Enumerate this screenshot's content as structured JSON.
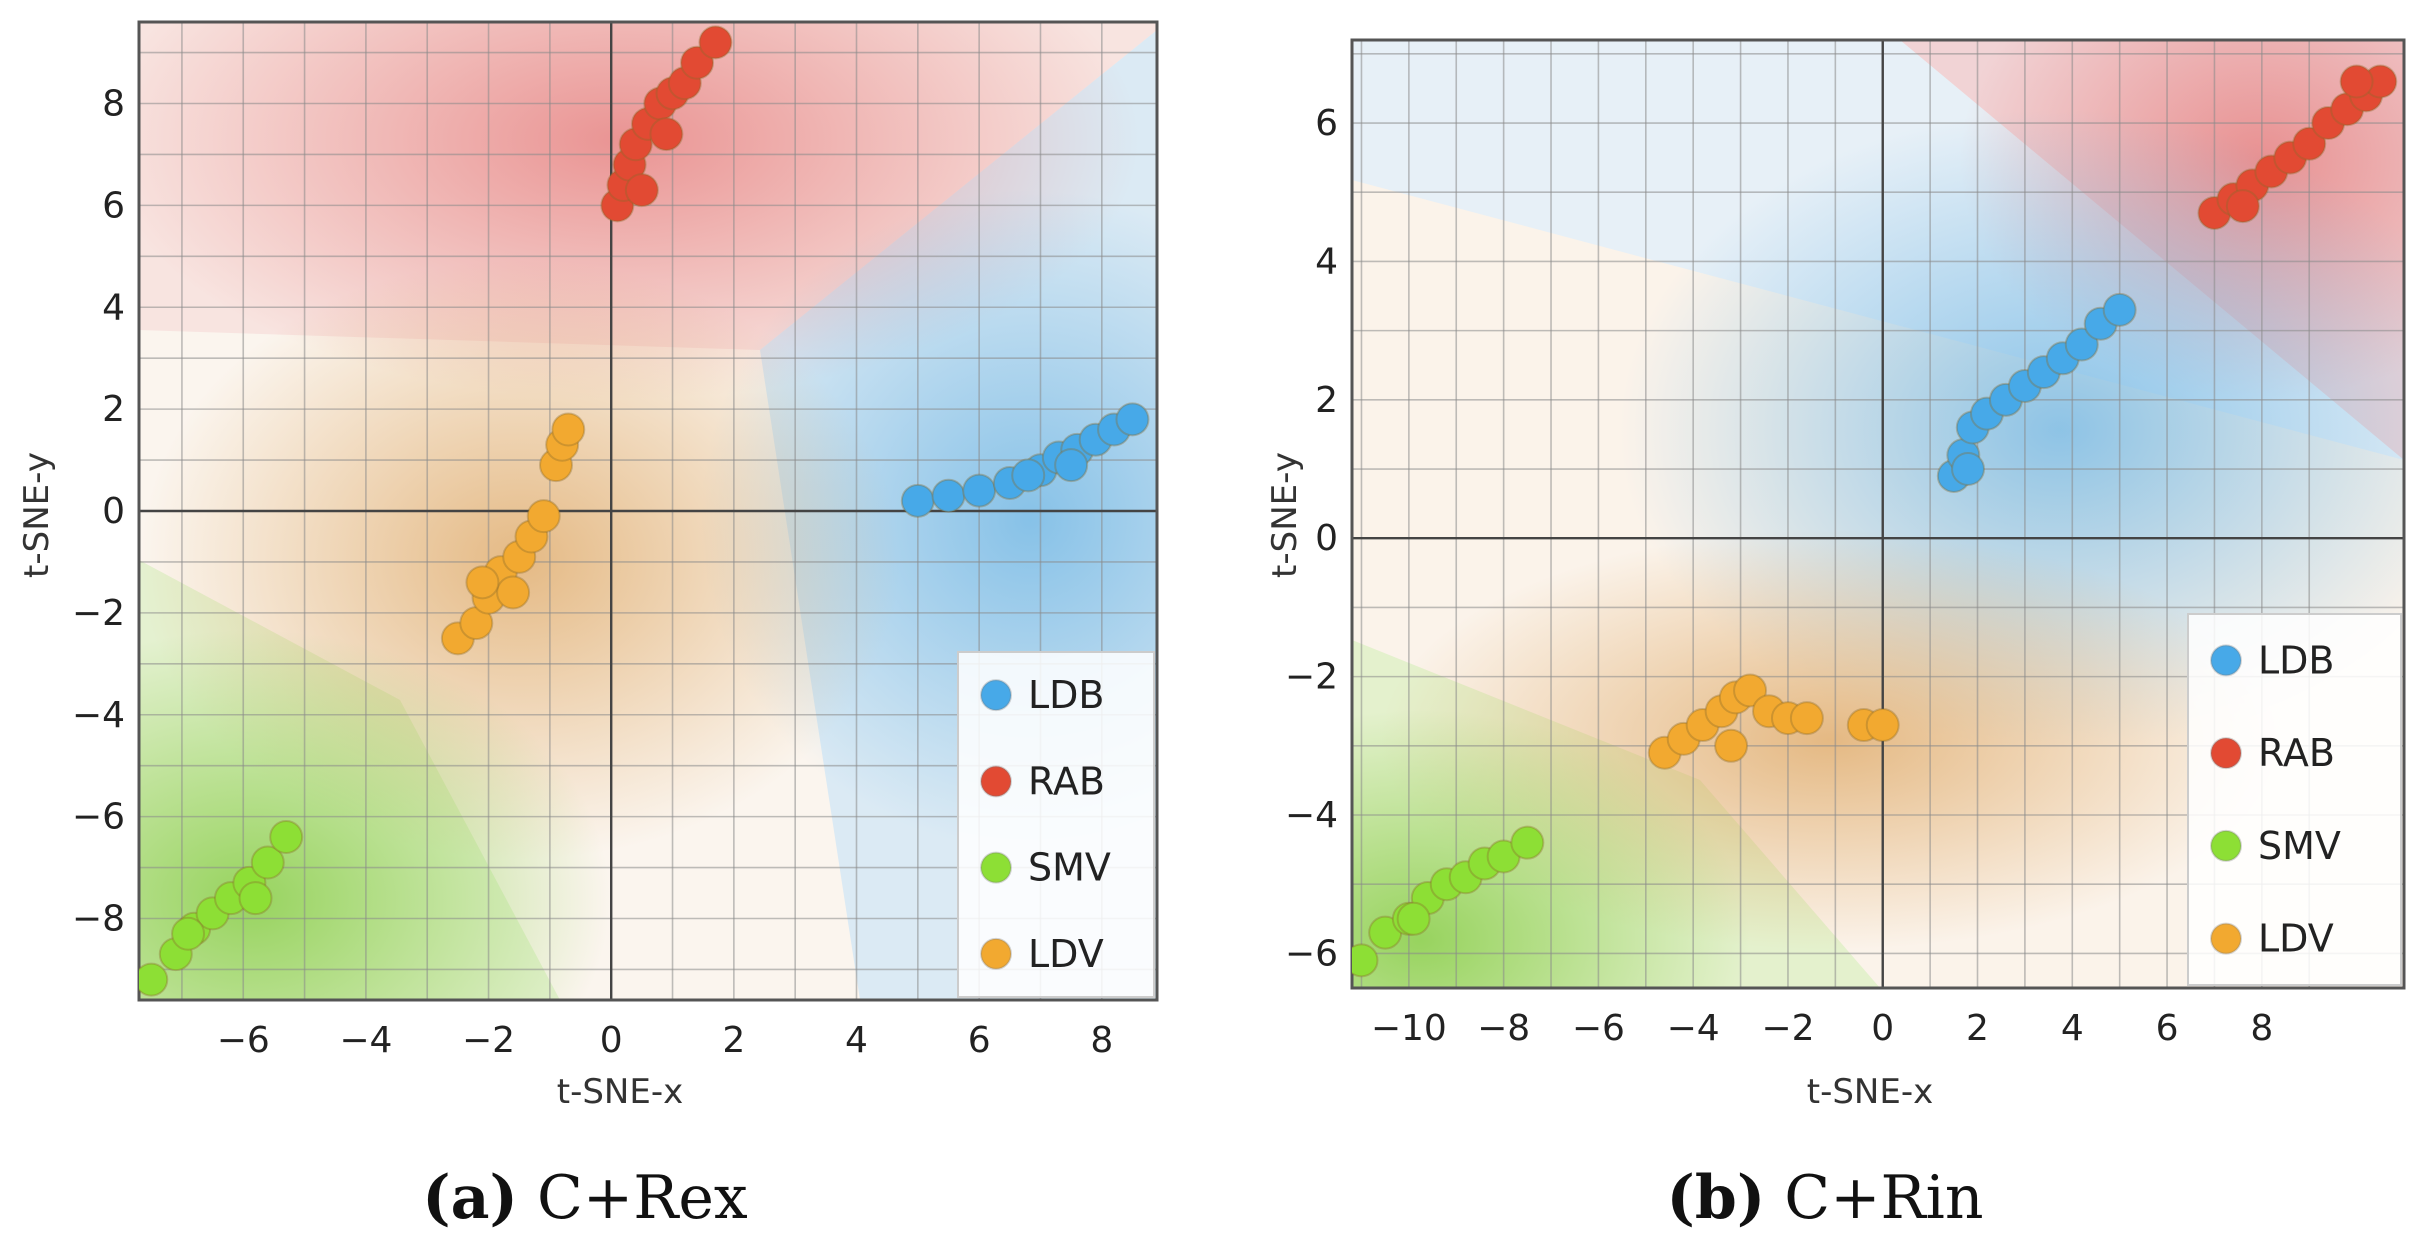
{
  "chart_data": [
    {
      "type": "scatter",
      "title": "",
      "xlabel": "t-SNE-x",
      "ylabel": "t-SNE-y",
      "xlim": [
        -7.7,
        8.9
      ],
      "ylim": [
        -9.6,
        9.6
      ],
      "xticks": [
        -6,
        -4,
        -2,
        0,
        2,
        4,
        6,
        8
      ],
      "yticks": [
        -8,
        -6,
        -4,
        -2,
        0,
        2,
        4,
        6,
        8
      ],
      "grid": true,
      "legend": "bottom-right",
      "caption": {
        "letter": "(a)",
        "text": " C+Rex"
      },
      "series": [
        {
          "name": "LDB",
          "color": "#47a9e8",
          "x": [
            5.0,
            5.5,
            6.0,
            6.5,
            7.0,
            7.3,
            7.6,
            7.9,
            8.2,
            8.5,
            7.5,
            6.8
          ],
          "y": [
            0.2,
            0.3,
            0.4,
            0.55,
            0.8,
            1.05,
            1.2,
            1.4,
            1.6,
            1.8,
            0.9,
            0.7
          ]
        },
        {
          "name": "RAB",
          "color": "#e24a33",
          "x": [
            0.1,
            0.2,
            0.3,
            0.4,
            0.6,
            0.8,
            1.0,
            1.2,
            1.4,
            1.7,
            0.5,
            0.9
          ],
          "y": [
            6.0,
            6.4,
            6.8,
            7.2,
            7.6,
            8.0,
            8.2,
            8.4,
            8.8,
            9.2,
            6.3,
            7.4
          ]
        },
        {
          "name": "SMV",
          "color": "#8ddf35",
          "x": [
            -7.5,
            -7.1,
            -6.8,
            -6.5,
            -6.2,
            -5.9,
            -5.6,
            -5.3,
            -6.9,
            -5.8
          ],
          "y": [
            -9.2,
            -8.7,
            -8.2,
            -7.9,
            -7.6,
            -7.3,
            -6.9,
            -6.4,
            -8.3,
            -7.6
          ]
        },
        {
          "name": "LDV",
          "color": "#f2a930",
          "x": [
            -2.5,
            -2.2,
            -2.0,
            -1.8,
            -1.5,
            -1.3,
            -1.1,
            -0.9,
            -0.8,
            -0.7,
            -1.6,
            -2.1
          ],
          "y": [
            -2.5,
            -2.2,
            -1.7,
            -1.2,
            -0.9,
            -0.5,
            -0.1,
            0.9,
            1.3,
            1.6,
            -1.6,
            -1.4
          ]
        }
      ]
    },
    {
      "type": "scatter",
      "title": "",
      "xlabel": "t-SNE-x",
      "ylabel": "t-SNE-y",
      "xlim": [
        -11.2,
        11.0
      ],
      "ylim": [
        -6.5,
        7.2
      ],
      "xticks": [
        -10,
        -8,
        -6,
        -4,
        -2,
        0,
        2,
        4,
        6,
        8
      ],
      "yticks": [
        -6,
        -4,
        -2,
        0,
        2,
        4,
        6
      ],
      "grid": true,
      "legend": "bottom-right",
      "caption": {
        "letter": "(b)",
        "text": " C+Rin"
      },
      "series": [
        {
          "name": "LDB",
          "color": "#47a9e8",
          "x": [
            1.5,
            1.7,
            1.9,
            2.2,
            2.6,
            3.0,
            3.4,
            3.8,
            4.2,
            4.6,
            5.0,
            1.8
          ],
          "y": [
            0.9,
            1.2,
            1.6,
            1.8,
            2.0,
            2.2,
            2.4,
            2.6,
            2.8,
            3.1,
            3.3,
            1.0
          ]
        },
        {
          "name": "RAB",
          "color": "#e24a33",
          "x": [
            7.0,
            7.4,
            7.8,
            8.2,
            8.6,
            9.0,
            9.4,
            9.8,
            10.2,
            10.5,
            7.6,
            10.0
          ],
          "y": [
            4.7,
            4.9,
            5.1,
            5.3,
            5.5,
            5.7,
            6.0,
            6.2,
            6.4,
            6.6,
            4.8,
            6.6
          ]
        },
        {
          "name": "SMV",
          "color": "#8ddf35",
          "x": [
            -11.0,
            -10.5,
            -10.0,
            -9.6,
            -9.2,
            -8.8,
            -8.4,
            -8.0,
            -7.5,
            -9.9
          ],
          "y": [
            -6.1,
            -5.7,
            -5.5,
            -5.2,
            -5.0,
            -4.9,
            -4.7,
            -4.6,
            -4.4,
            -5.5
          ]
        },
        {
          "name": "LDV",
          "color": "#f2a930",
          "x": [
            -4.6,
            -4.2,
            -3.8,
            -3.4,
            -3.1,
            -2.8,
            -2.4,
            -2.0,
            -1.6,
            -0.4,
            0.0,
            -3.2
          ],
          "y": [
            -3.1,
            -2.9,
            -2.7,
            -2.5,
            -2.3,
            -2.2,
            -2.5,
            -2.6,
            -2.6,
            -2.7,
            -2.7,
            -3.0
          ]
        }
      ]
    }
  ]
}
